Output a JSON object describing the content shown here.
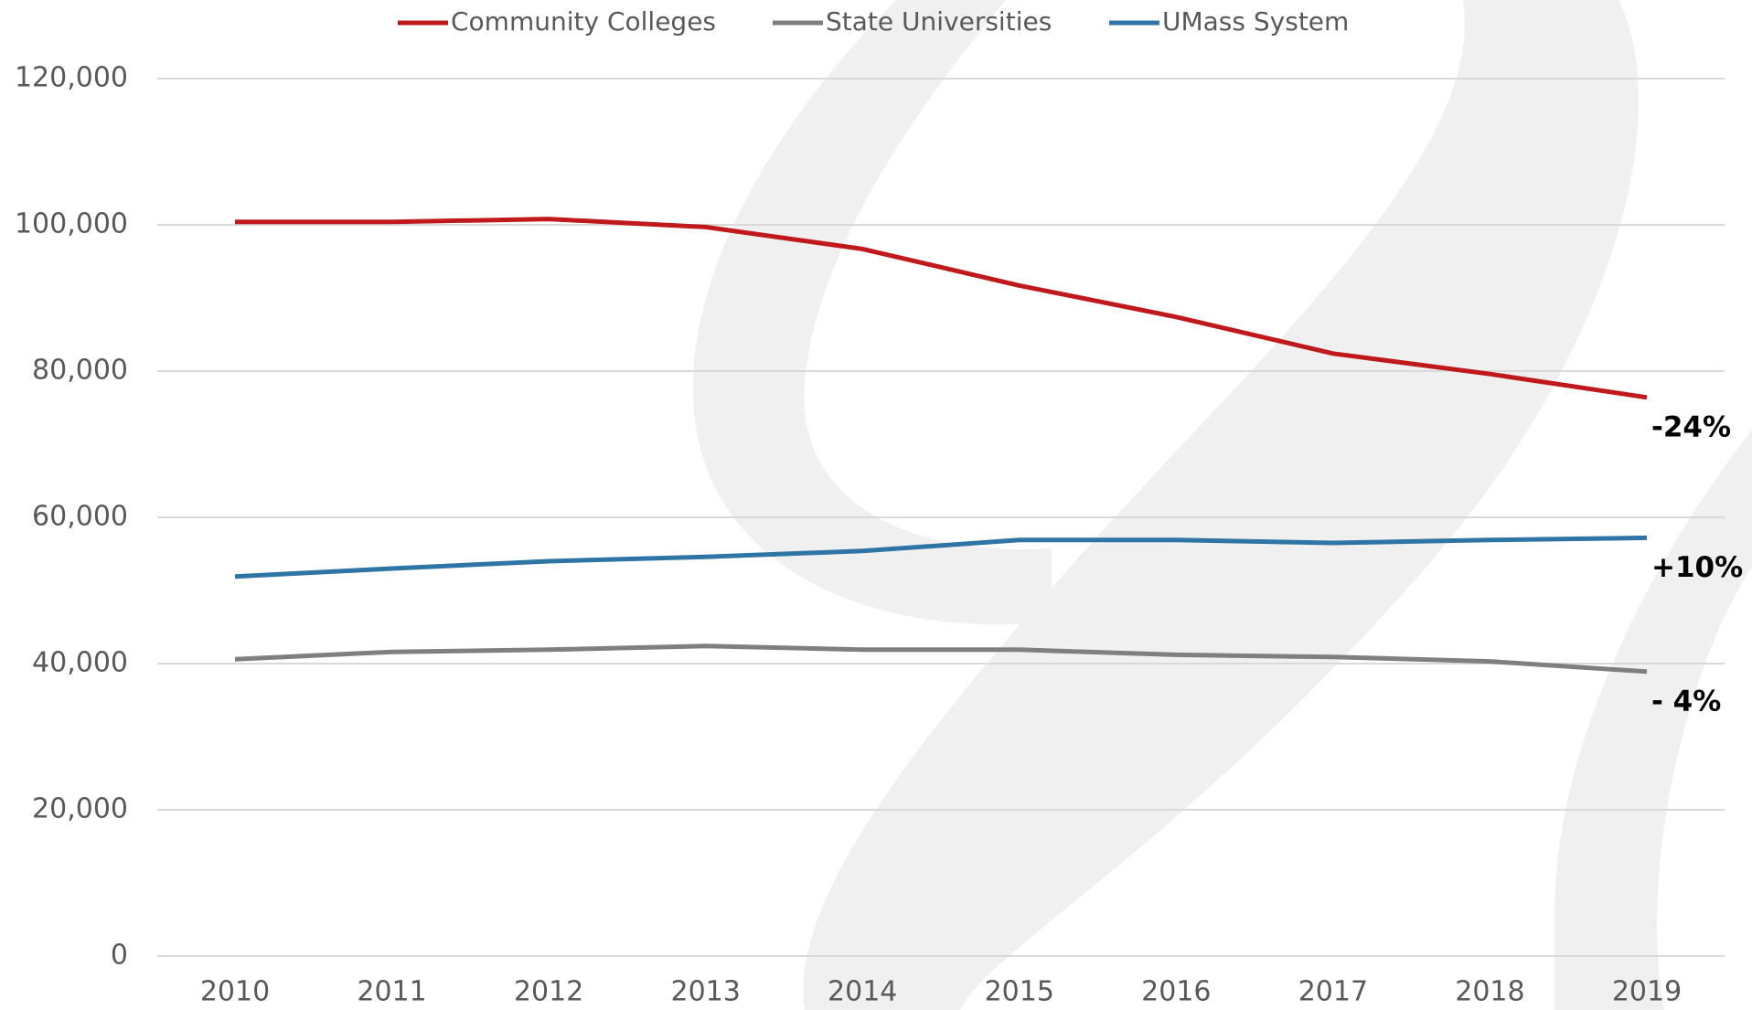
{
  "chart_data": {
    "type": "line",
    "x": [
      2010,
      2011,
      2012,
      2013,
      2014,
      2015,
      2016,
      2017,
      2018,
      2019
    ],
    "xlim": [
      2010,
      2019
    ],
    "xticks": [
      2010,
      2011,
      2012,
      2013,
      2014,
      2015,
      2016,
      2017,
      2018,
      2019
    ],
    "ylim": [
      0,
      120000
    ],
    "yticks": [
      0,
      {
        "value": 20000,
        "label": "20,000"
      },
      {
        "value": 40000,
        "label": "40,000"
      },
      {
        "value": 60000,
        "label": "60,000"
      },
      {
        "value": 80000,
        "label": "80,000"
      },
      {
        "value": 100000,
        "label": "100,000"
      },
      {
        "value": 120000,
        "label": "120,000"
      }
    ],
    "grid": true,
    "legend": "top",
    "series": [
      {
        "name": "Community Colleges",
        "color": "#c0191c",
        "values": [
          100400,
          100400,
          100800,
          99700,
          96700,
          91700,
          87400,
          82400,
          79600,
          76400
        ],
        "end_label": "-24%"
      },
      {
        "name": "State Universities",
        "color": "#7f7f7f",
        "values": [
          40600,
          41600,
          41900,
          42400,
          41900,
          41900,
          41200,
          40900,
          40300,
          38900
        ],
        "end_label": "- 4%"
      },
      {
        "name": "UMass System",
        "color": "#2e75a6",
        "values": [
          51900,
          53000,
          54000,
          54600,
          55400,
          56900,
          56900,
          56500,
          56900,
          57200
        ],
        "end_label": "+10%"
      }
    ]
  }
}
